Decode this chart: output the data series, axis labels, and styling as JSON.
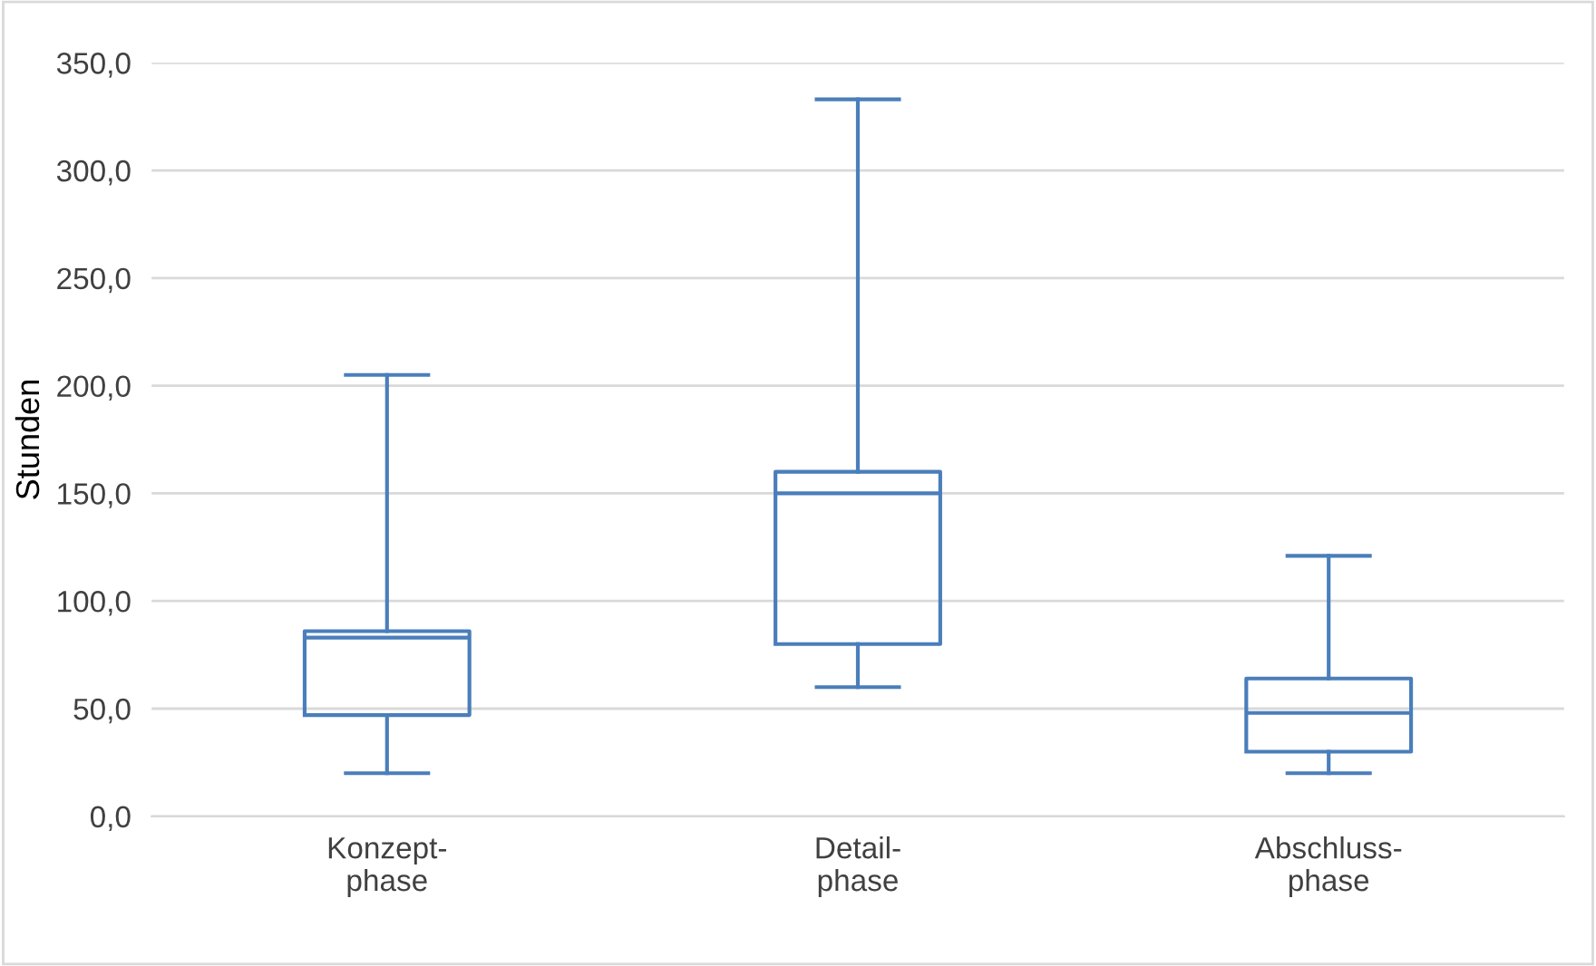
{
  "chart_data": {
    "type": "box",
    "ylabel": "Stunden",
    "categories": [
      "Konzept-\nphase",
      "Detail-\nphase",
      "Abschluss-\nphase"
    ],
    "color": "#4a7ebb",
    "boxes": [
      {
        "low": 20,
        "q1": 47,
        "median": 83,
        "q3": 86,
        "high": 205
      },
      {
        "low": 60,
        "q1": 80,
        "median": 150,
        "q3": 160,
        "high": 333
      },
      {
        "low": 20,
        "q1": 30,
        "median": 48,
        "q3": 64,
        "high": 121
      }
    ],
    "ylim": [
      0,
      350
    ],
    "yticks": [
      {
        "value": 0,
        "label": "0,0"
      },
      {
        "value": 50,
        "label": "50,0"
      },
      {
        "value": 100,
        "label": "100,0"
      },
      {
        "value": 150,
        "label": "150,0"
      },
      {
        "value": 200,
        "label": "200,0"
      },
      {
        "value": 250,
        "label": "250,0"
      },
      {
        "value": 300,
        "label": "300,0"
      },
      {
        "value": 350,
        "label": "350,0"
      }
    ],
    "grid": "y",
    "legend": false
  }
}
